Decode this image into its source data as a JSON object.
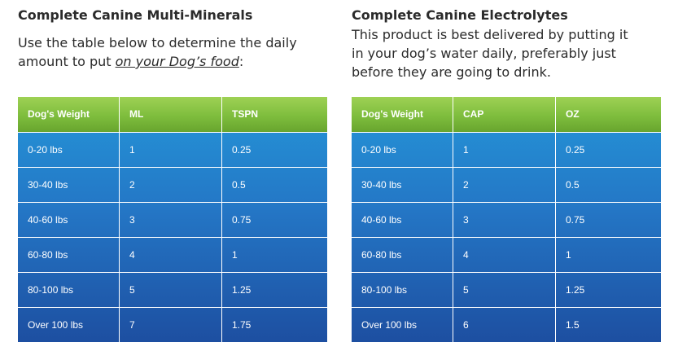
{
  "left": {
    "title": "Complete Canine Multi-Minerals",
    "desc_line1": "Use the table below to determine the daily",
    "desc_line2_prefix": "amount to put ",
    "desc_line2_link": "on your Dog’s food",
    "desc_line2_suffix": ":",
    "headers": [
      "Dog's Weight",
      "ML",
      "TSPN"
    ],
    "rows": [
      [
        "0-20 lbs",
        "1",
        "0.25"
      ],
      [
        "30-40 lbs",
        "2",
        "0.5"
      ],
      [
        "40-60 lbs",
        "3",
        "0.75"
      ],
      [
        "60-80 lbs",
        "4",
        "1"
      ],
      [
        "80-100 lbs",
        "5",
        "1.25"
      ],
      [
        "Over 100 lbs",
        "7",
        "1.75"
      ]
    ]
  },
  "right": {
    "title": "Complete Canine Electrolytes",
    "desc_line1": "This product is best delivered by putting it",
    "desc_line2": "in your dog’s water daily, preferably just",
    "desc_line3": "before they are going to drink.",
    "headers": [
      "Dog's Weight",
      "CAP",
      "OZ"
    ],
    "rows": [
      [
        "0-20 lbs",
        "1",
        "0.25"
      ],
      [
        "30-40 lbs",
        "2",
        "0.5"
      ],
      [
        "40-60 lbs",
        "3",
        "0.75"
      ],
      [
        "60-80 lbs",
        "4",
        "1"
      ],
      [
        "80-100 lbs",
        "5",
        "1.25"
      ],
      [
        "Over 100 lbs",
        "6",
        "1.5"
      ]
    ]
  },
  "colors": {
    "header_green": "#7ebd3d",
    "body_blue_top": "#2596d8",
    "body_blue_bottom": "#1d4fa1",
    "text": "#2b2b2b"
  }
}
